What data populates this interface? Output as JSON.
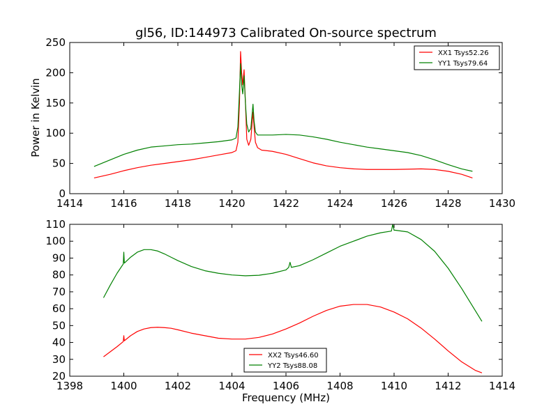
{
  "chart_data": [
    {
      "type": "line",
      "title": "gl56, ID:144973 Calibrated On-source spectrum",
      "xlabel": "",
      "ylabel": "Power in Kelvin",
      "xlim": [
        1414,
        1430
      ],
      "ylim": [
        0,
        250
      ],
      "xticks": [
        1414,
        1416,
        1418,
        1420,
        1422,
        1424,
        1426,
        1428,
        1430
      ],
      "yticks": [
        0,
        50,
        100,
        150,
        200,
        250
      ],
      "legend_position": "top-right",
      "series": [
        {
          "name": "XX1 Tsys52.26",
          "color": "#ff0000",
          "x": [
            1414.9,
            1415.5,
            1416.0,
            1416.5,
            1417.0,
            1417.5,
            1418.0,
            1418.5,
            1419.0,
            1419.5,
            1420.0,
            1420.15,
            1420.22,
            1420.28,
            1420.32,
            1420.36,
            1420.4,
            1420.45,
            1420.5,
            1420.55,
            1420.62,
            1420.7,
            1420.78,
            1420.82,
            1420.87,
            1420.95,
            1421.1,
            1421.5,
            1422.0,
            1422.5,
            1423.0,
            1423.5,
            1424.0,
            1424.5,
            1425.0,
            1425.5,
            1426.0,
            1426.5,
            1427.0,
            1427.5,
            1428.0,
            1428.5,
            1428.9
          ],
          "values": [
            26,
            32,
            38,
            43,
            47,
            50,
            53,
            56,
            60,
            64,
            68,
            71,
            85,
            150,
            235,
            200,
            180,
            205,
            150,
            90,
            80,
            90,
            135,
            110,
            85,
            76,
            72,
            70,
            65,
            58,
            51,
            46,
            43,
            41,
            40,
            40,
            40,
            40.5,
            41,
            40,
            37,
            32,
            26
          ]
        },
        {
          "name": "YY1 Tsys79.64",
          "color": "#008000",
          "x": [
            1414.9,
            1415.5,
            1416.0,
            1416.5,
            1417.0,
            1417.5,
            1418.0,
            1418.5,
            1419.0,
            1419.5,
            1420.0,
            1420.15,
            1420.22,
            1420.28,
            1420.32,
            1420.36,
            1420.4,
            1420.45,
            1420.5,
            1420.55,
            1420.62,
            1420.7,
            1420.78,
            1420.82,
            1420.87,
            1420.95,
            1421.1,
            1421.5,
            1422.0,
            1422.5,
            1423.0,
            1423.5,
            1424.0,
            1424.5,
            1425.0,
            1425.5,
            1426.0,
            1426.5,
            1427.0,
            1427.5,
            1428.0,
            1428.5,
            1428.9
          ],
          "values": [
            45,
            56,
            65,
            72,
            77,
            79,
            81,
            82,
            84,
            86,
            89,
            92,
            110,
            170,
            215,
            180,
            165,
            195,
            150,
            115,
            102,
            108,
            148,
            120,
            102,
            97,
            97,
            97,
            98,
            97,
            94,
            90,
            85,
            81,
            77,
            74,
            71,
            68,
            63,
            56,
            48,
            41,
            37
          ]
        }
      ]
    },
    {
      "type": "line",
      "title": "",
      "xlabel": "Frequency (MHz)",
      "ylabel": "",
      "xlim": [
        1398,
        1414
      ],
      "ylim": [
        20,
        110
      ],
      "xticks": [
        1398,
        1400,
        1402,
        1404,
        1406,
        1408,
        1410,
        1412,
        1414
      ],
      "yticks": [
        20,
        30,
        40,
        50,
        60,
        70,
        80,
        90,
        100,
        110
      ],
      "legend_position": "bottom-center",
      "series": [
        {
          "name": "XX2 Tsys46.60",
          "color": "#ff0000",
          "x": [
            1399.25,
            1399.5,
            1399.75,
            1399.98,
            1400.0,
            1400.02,
            1400.25,
            1400.5,
            1400.75,
            1401.0,
            1401.25,
            1401.5,
            1401.75,
            1402.0,
            1402.5,
            1403.0,
            1403.5,
            1404.0,
            1404.5,
            1405.0,
            1405.5,
            1406.0,
            1406.5,
            1407.0,
            1407.5,
            1408.0,
            1408.5,
            1409.0,
            1409.5,
            1410.0,
            1410.5,
            1411.0,
            1411.5,
            1412.0,
            1412.5,
            1413.0,
            1413.25
          ],
          "values": [
            31.5,
            34.5,
            37.5,
            40.5,
            44,
            41,
            44,
            46.5,
            48,
            48.8,
            49,
            48.8,
            48.4,
            47.5,
            45.5,
            44,
            42.5,
            42,
            42,
            43,
            45,
            48,
            51.5,
            55.5,
            59,
            61.5,
            62.5,
            62.5,
            61,
            58,
            54,
            48.5,
            42,
            35,
            28.5,
            23.5,
            22
          ]
        },
        {
          "name": "YY2 Tsys88.08",
          "color": "#008000",
          "x": [
            1399.25,
            1399.5,
            1399.75,
            1399.98,
            1400.0,
            1400.02,
            1400.25,
            1400.5,
            1400.75,
            1401.0,
            1401.25,
            1401.5,
            1401.75,
            1402.0,
            1402.5,
            1403.0,
            1403.5,
            1404.0,
            1404.5,
            1405.0,
            1405.5,
            1406.0,
            1406.1,
            1406.15,
            1406.2,
            1406.5,
            1407.0,
            1407.5,
            1408.0,
            1408.5,
            1409.0,
            1409.5,
            1409.9,
            1409.95,
            1410.0,
            1410.05,
            1410.5,
            1411.0,
            1411.5,
            1412.0,
            1412.5,
            1413.0,
            1413.25
          ],
          "values": [
            66.5,
            74,
            81,
            86.5,
            93.5,
            87,
            90.5,
            93.5,
            95,
            95,
            94.2,
            92.5,
            90.5,
            88.5,
            85,
            82.5,
            81,
            80,
            79.5,
            79.8,
            81,
            83,
            84.5,
            87.5,
            84.5,
            85.5,
            89,
            93,
            97,
            100,
            103,
            105,
            106,
            110,
            106.5,
            106.5,
            105.5,
            101,
            94,
            84,
            72,
            59,
            52.5
          ]
        }
      ]
    }
  ]
}
